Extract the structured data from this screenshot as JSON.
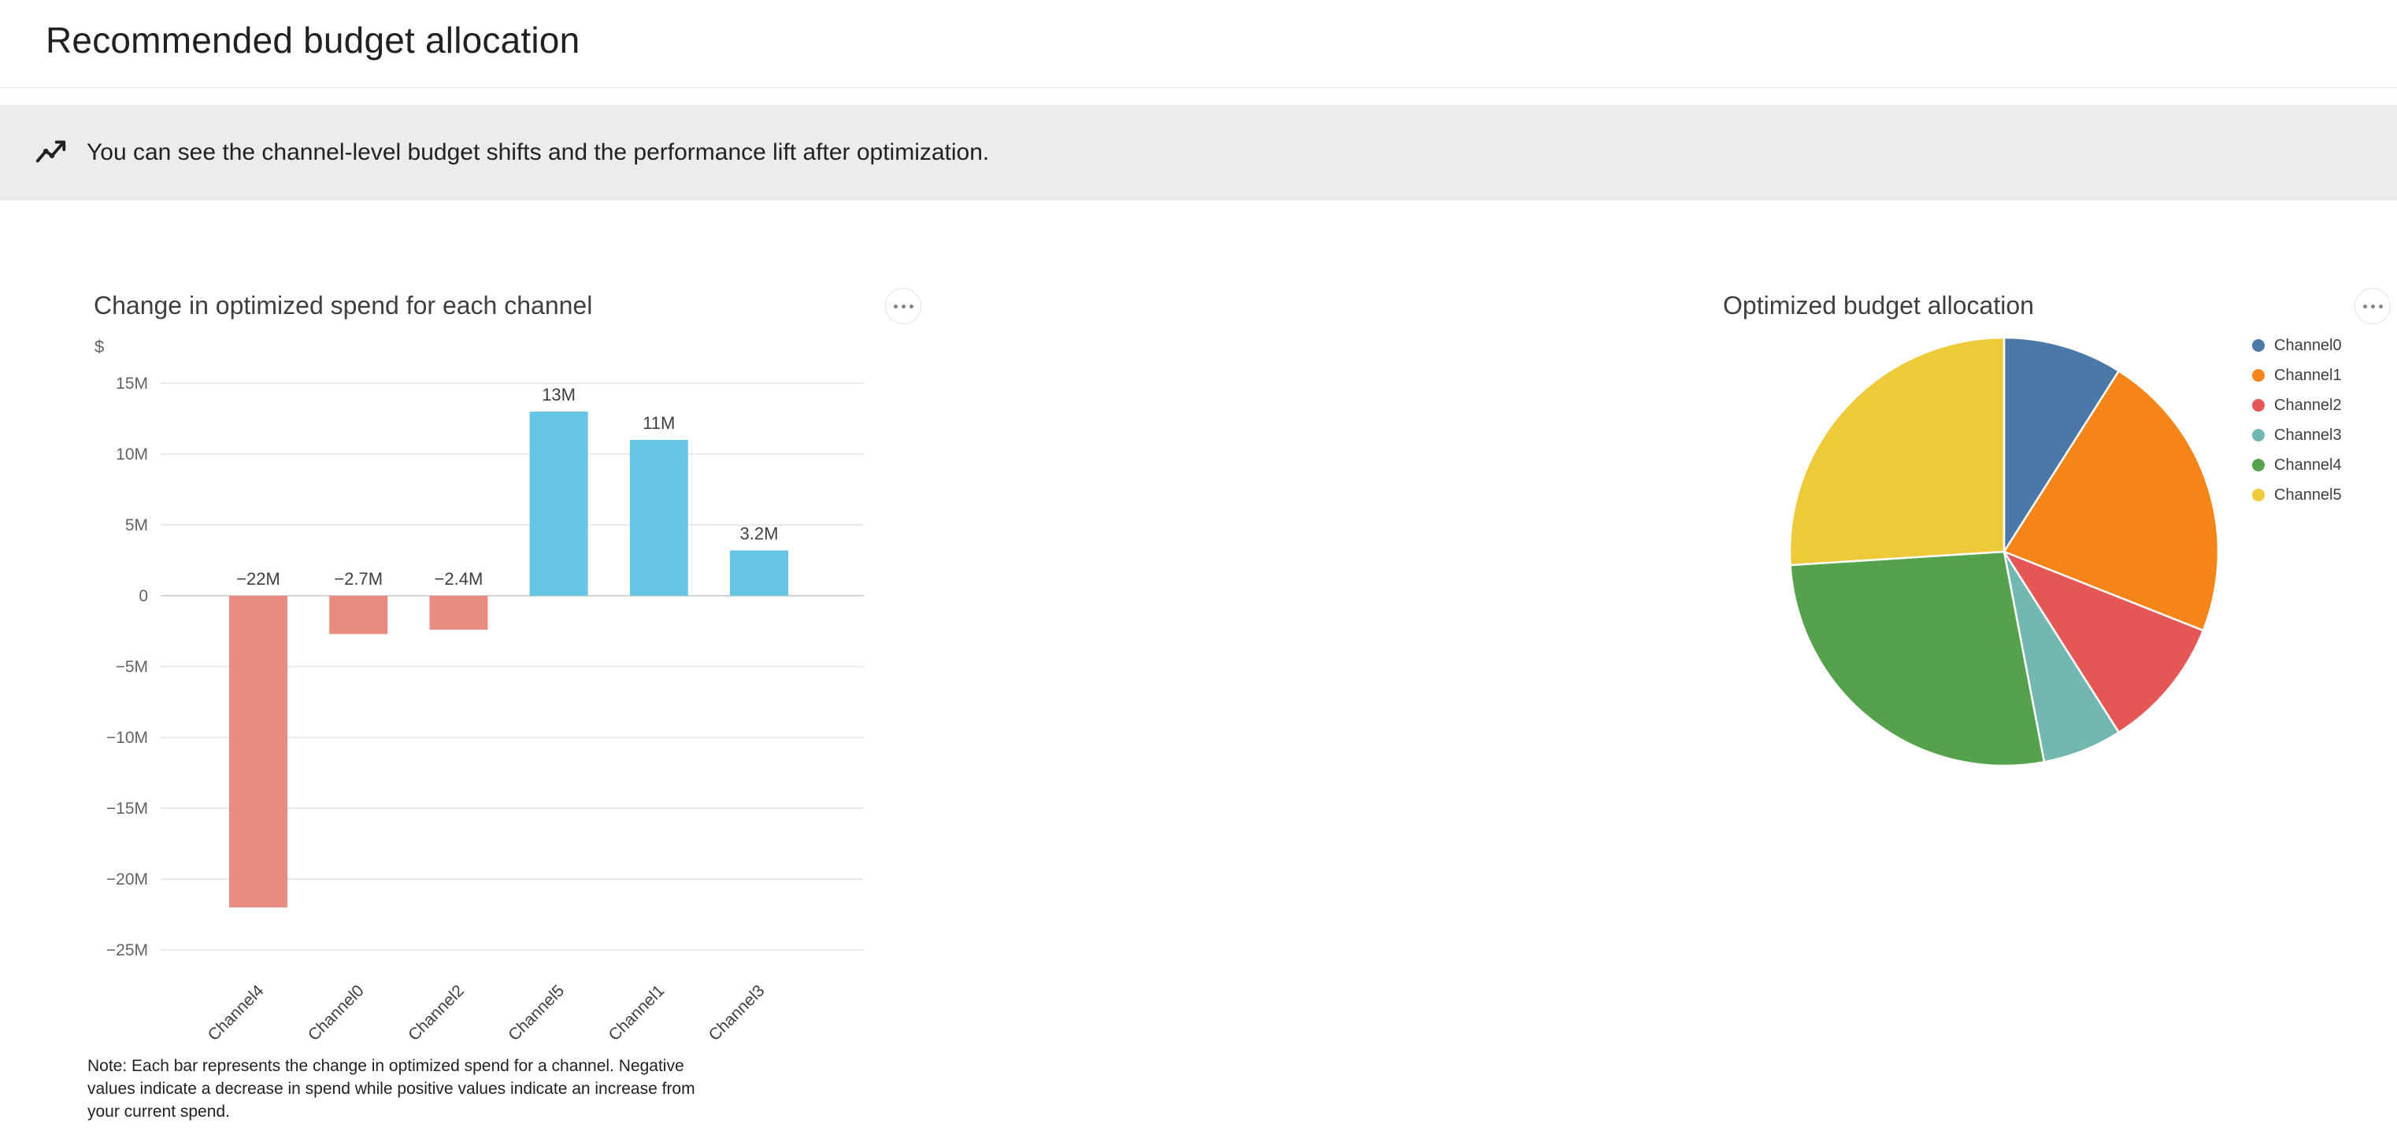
{
  "header": {
    "title": "Recommended budget allocation"
  },
  "banner": {
    "icon": "insights-icon",
    "text": "You can see the channel-level budget shifts and the performance lift after optimization."
  },
  "ui": {
    "more_options": "More options"
  },
  "charts": {
    "bar": {
      "title": "Change in optimized spend for each channel",
      "note": "Note: Each bar represents the change in optimized spend for a channel. Negative values indicate a decrease in spend while positive values indicate an increase from your current spend."
    },
    "pie": {
      "title": "Optimized budget allocation"
    }
  },
  "chart_data": [
    {
      "type": "bar",
      "title": "Change in optimized spend for each channel",
      "ylabel": "$",
      "value_unit": "M",
      "categories": [
        "Channel4",
        "Channel0",
        "Channel2",
        "Channel5",
        "Channel1",
        "Channel3"
      ],
      "values_millions": [
        -22,
        -2.7,
        -2.4,
        13,
        11,
        3.2
      ],
      "bar_labels": [
        "−22M",
        "−2.7M",
        "−2.4M",
        "13M",
        "11M",
        "3.2M"
      ],
      "y_ticks": [
        {
          "value": 15,
          "label": "15M"
        },
        {
          "value": 10,
          "label": "10M"
        },
        {
          "value": 5,
          "label": "5M"
        },
        {
          "value": 0,
          "label": "0"
        },
        {
          "value": -5,
          "label": "−5M"
        },
        {
          "value": -10,
          "label": "−10M"
        },
        {
          "value": -15,
          "label": "−15M"
        },
        {
          "value": -20,
          "label": "−20M"
        },
        {
          "value": -25,
          "label": "−25M"
        }
      ],
      "ylim": [
        -25,
        15
      ],
      "grid": true,
      "colors": {
        "positive": "#65c5e3",
        "negative": "#e98b80"
      }
    },
    {
      "type": "pie",
      "title": "Optimized budget allocation",
      "legend_position": "right",
      "slices": [
        {
          "label": "Channel0",
          "pct": 9,
          "color": "#4c78a8"
        },
        {
          "label": "Channel1",
          "pct": 22,
          "color": "#f58518"
        },
        {
          "label": "Channel2",
          "pct": 10,
          "color": "#e45756"
        },
        {
          "label": "Channel3",
          "pct": 6,
          "color": "#72b7b2"
        },
        {
          "label": "Channel4",
          "pct": 27,
          "color": "#54a24b"
        },
        {
          "label": "Channel5",
          "pct": 26,
          "color": "#eeca3b"
        }
      ]
    }
  ]
}
